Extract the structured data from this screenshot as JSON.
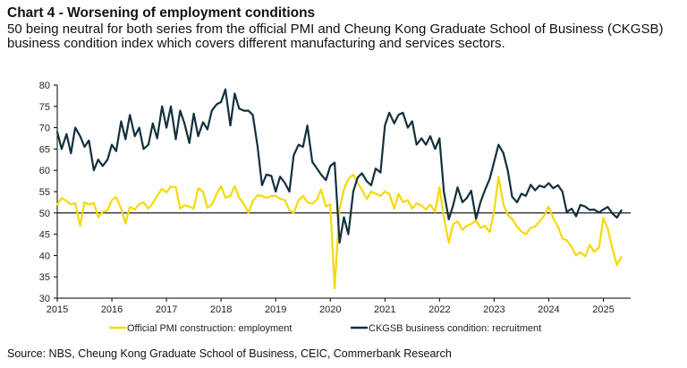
{
  "title": "Chart 4 - Worsening of employment conditions",
  "subtitle": "50 being neutral for both series from the official PMI and Cheung Kong Graduate School of Business (CKGSB) business condition index which covers different manufacturing and services sectors.",
  "source": "Source: NBS, Cheung Kong Graduate School of Business, CEIC, Commerbank Research",
  "colors": {
    "pmi": "#F5D90A",
    "ckgsb": "#13303D",
    "reference": "#000000"
  },
  "chart_data": {
    "type": "line",
    "xlim": [
      2015,
      2025.5
    ],
    "ylim": [
      30,
      80
    ],
    "x_ticks": [
      "2015",
      "2016",
      "2017",
      "2018",
      "2019",
      "2020",
      "2021",
      "2022",
      "2023",
      "2024",
      "2025"
    ],
    "y_ticks": [
      "30",
      "35",
      "40",
      "45",
      "50",
      "55",
      "60",
      "65",
      "70",
      "75",
      "80"
    ],
    "reference_line": 50,
    "grid": false,
    "legend_position": "bottom",
    "series": [
      {
        "name": "Official PMI construction: employment",
        "color": "#F5D90A",
        "points": [
          [
            2015.0,
            52.0
          ],
          [
            2015.08,
            53.5
          ],
          [
            2015.17,
            52.8
          ],
          [
            2015.25,
            52.0
          ],
          [
            2015.33,
            52.3
          ],
          [
            2015.42,
            47.0
          ],
          [
            2015.5,
            52.5
          ],
          [
            2015.58,
            52.0
          ],
          [
            2015.67,
            52.3
          ],
          [
            2015.75,
            49.0
          ],
          [
            2015.83,
            50.2
          ],
          [
            2015.92,
            50.6
          ],
          [
            2016.0,
            53.0
          ],
          [
            2016.08,
            53.7
          ],
          [
            2016.17,
            51.0
          ],
          [
            2016.25,
            47.5
          ],
          [
            2016.33,
            51.4
          ],
          [
            2016.42,
            50.8
          ],
          [
            2016.5,
            52.0
          ],
          [
            2016.58,
            52.5
          ],
          [
            2016.67,
            51.0
          ],
          [
            2016.75,
            52.3
          ],
          [
            2016.83,
            54.0
          ],
          [
            2016.92,
            55.7
          ],
          [
            2017.0,
            54.8
          ],
          [
            2017.08,
            56.2
          ],
          [
            2017.17,
            56.0
          ],
          [
            2017.25,
            51.0
          ],
          [
            2017.33,
            51.8
          ],
          [
            2017.42,
            51.5
          ],
          [
            2017.5,
            51.0
          ],
          [
            2017.58,
            55.8
          ],
          [
            2017.67,
            55.0
          ],
          [
            2017.75,
            51.2
          ],
          [
            2017.83,
            52.0
          ],
          [
            2017.92,
            54.5
          ],
          [
            2018.0,
            56.3
          ],
          [
            2018.08,
            53.6
          ],
          [
            2018.17,
            54.0
          ],
          [
            2018.25,
            56.3
          ],
          [
            2018.33,
            53.6
          ],
          [
            2018.42,
            52.0
          ],
          [
            2018.5,
            50.0
          ],
          [
            2018.58,
            52.8
          ],
          [
            2018.67,
            54.2
          ],
          [
            2018.75,
            54.0
          ],
          [
            2018.83,
            53.5
          ],
          [
            2018.92,
            54.0
          ],
          [
            2019.0,
            54.0
          ],
          [
            2019.08,
            53.3
          ],
          [
            2019.17,
            53.0
          ],
          [
            2019.25,
            50.6
          ],
          [
            2019.33,
            50.0
          ],
          [
            2019.42,
            53.0
          ],
          [
            2019.5,
            54.0
          ],
          [
            2019.58,
            52.5
          ],
          [
            2019.67,
            52.2
          ],
          [
            2019.75,
            53.0
          ],
          [
            2019.83,
            55.5
          ],
          [
            2019.92,
            51.5
          ],
          [
            2020.0,
            52.0
          ],
          [
            2020.08,
            32.3
          ],
          [
            2020.17,
            51.0
          ],
          [
            2020.25,
            55.5
          ],
          [
            2020.33,
            58.0
          ],
          [
            2020.42,
            59.0
          ],
          [
            2020.5,
            57.0
          ],
          [
            2020.58,
            55.4
          ],
          [
            2020.67,
            53.3
          ],
          [
            2020.75,
            55.0
          ],
          [
            2020.83,
            54.5
          ],
          [
            2020.92,
            54.0
          ],
          [
            2021.0,
            55.0
          ],
          [
            2021.08,
            54.5
          ],
          [
            2021.17,
            51.0
          ],
          [
            2021.25,
            54.5
          ],
          [
            2021.33,
            52.5
          ],
          [
            2021.42,
            53.0
          ],
          [
            2021.5,
            51.0
          ],
          [
            2021.58,
            52.2
          ],
          [
            2021.67,
            51.7
          ],
          [
            2021.75,
            50.8
          ],
          [
            2021.83,
            52.0
          ],
          [
            2021.92,
            50.2
          ],
          [
            2022.0,
            56.0
          ],
          [
            2022.08,
            49.0
          ],
          [
            2022.17,
            43.0
          ],
          [
            2022.25,
            47.4
          ],
          [
            2022.33,
            48.0
          ],
          [
            2022.42,
            46.0
          ],
          [
            2022.5,
            47.0
          ],
          [
            2022.58,
            47.4
          ],
          [
            2022.67,
            48.2
          ],
          [
            2022.75,
            46.5
          ],
          [
            2022.83,
            47.0
          ],
          [
            2022.92,
            45.5
          ],
          [
            2023.0,
            50.5
          ],
          [
            2023.08,
            58.5
          ],
          [
            2023.17,
            52.0
          ],
          [
            2023.25,
            49.5
          ],
          [
            2023.33,
            48.6
          ],
          [
            2023.42,
            46.8
          ],
          [
            2023.5,
            45.6
          ],
          [
            2023.58,
            45.0
          ],
          [
            2023.67,
            46.5
          ],
          [
            2023.75,
            46.8
          ],
          [
            2023.83,
            48.0
          ],
          [
            2023.92,
            49.4
          ],
          [
            2024.0,
            51.5
          ],
          [
            2024.08,
            48.8
          ],
          [
            2024.17,
            46.8
          ],
          [
            2024.25,
            44.0
          ],
          [
            2024.33,
            43.6
          ],
          [
            2024.42,
            42.0
          ],
          [
            2024.5,
            40.0
          ],
          [
            2024.58,
            40.8
          ],
          [
            2024.67,
            39.8
          ],
          [
            2024.75,
            42.5
          ],
          [
            2024.83,
            40.9
          ],
          [
            2024.92,
            41.8
          ],
          [
            2025.0,
            48.8
          ],
          [
            2025.08,
            46.3
          ],
          [
            2025.17,
            41.4
          ],
          [
            2025.25,
            37.8
          ],
          [
            2025.33,
            39.6
          ]
        ]
      },
      {
        "name": "CKGSB business condition: recruitment",
        "color": "#13303D",
        "points": [
          [
            2015.0,
            69.0
          ],
          [
            2015.08,
            65.0
          ],
          [
            2015.17,
            68.5
          ],
          [
            2015.25,
            64.0
          ],
          [
            2015.33,
            70.0
          ],
          [
            2015.42,
            68.0
          ],
          [
            2015.5,
            65.5
          ],
          [
            2015.58,
            67.0
          ],
          [
            2015.67,
            60.0
          ],
          [
            2015.75,
            62.5
          ],
          [
            2015.83,
            61.0
          ],
          [
            2015.92,
            62.5
          ],
          [
            2016.0,
            66.0
          ],
          [
            2016.08,
            64.5
          ],
          [
            2016.17,
            71.5
          ],
          [
            2016.25,
            67.3
          ],
          [
            2016.33,
            73.0
          ],
          [
            2016.42,
            68.0
          ],
          [
            2016.5,
            70.0
          ],
          [
            2016.58,
            65.0
          ],
          [
            2016.67,
            66.0
          ],
          [
            2016.75,
            71.0
          ],
          [
            2016.83,
            67.5
          ],
          [
            2016.92,
            75.0
          ],
          [
            2017.0,
            70.0
          ],
          [
            2017.08,
            75.0
          ],
          [
            2017.17,
            67.3
          ],
          [
            2017.25,
            74.0
          ],
          [
            2017.33,
            71.0
          ],
          [
            2017.42,
            66.4
          ],
          [
            2017.5,
            73.3
          ],
          [
            2017.58,
            68.0
          ],
          [
            2017.67,
            71.3
          ],
          [
            2017.75,
            69.6
          ],
          [
            2017.83,
            74.0
          ],
          [
            2017.92,
            75.5
          ],
          [
            2018.0,
            76.0
          ],
          [
            2018.08,
            79.0
          ],
          [
            2018.17,
            70.5
          ],
          [
            2018.25,
            78.0
          ],
          [
            2018.33,
            74.5
          ],
          [
            2018.42,
            74.0
          ],
          [
            2018.5,
            74.0
          ],
          [
            2018.58,
            73.0
          ],
          [
            2018.67,
            65.5
          ],
          [
            2018.75,
            56.5
          ],
          [
            2018.83,
            59.0
          ],
          [
            2018.92,
            58.7
          ],
          [
            2019.0,
            55.0
          ],
          [
            2019.08,
            58.5
          ],
          [
            2019.17,
            57.0
          ],
          [
            2019.25,
            55.0
          ],
          [
            2019.33,
            63.5
          ],
          [
            2019.42,
            66.0
          ],
          [
            2019.5,
            65.5
          ],
          [
            2019.58,
            70.5
          ],
          [
            2019.67,
            62.0
          ],
          [
            2019.75,
            60.5
          ],
          [
            2019.83,
            59.0
          ],
          [
            2019.92,
            57.7
          ],
          [
            2020.0,
            61.0
          ],
          [
            2020.08,
            61.8
          ],
          [
            2020.17,
            43.0
          ],
          [
            2020.25,
            49.0
          ],
          [
            2020.33,
            45.0
          ],
          [
            2020.42,
            55.0
          ],
          [
            2020.5,
            58.3
          ],
          [
            2020.58,
            59.3
          ],
          [
            2020.67,
            57.4
          ],
          [
            2020.75,
            56.5
          ],
          [
            2020.83,
            60.4
          ],
          [
            2020.92,
            59.5
          ],
          [
            2021.0,
            70.5
          ],
          [
            2021.08,
            73.5
          ],
          [
            2021.17,
            71.0
          ],
          [
            2021.25,
            73.0
          ],
          [
            2021.33,
            73.5
          ],
          [
            2021.42,
            70.0
          ],
          [
            2021.5,
            71.5
          ],
          [
            2021.58,
            66.0
          ],
          [
            2021.67,
            67.5
          ],
          [
            2021.75,
            66.0
          ],
          [
            2021.83,
            68.0
          ],
          [
            2021.92,
            65.0
          ],
          [
            2022.0,
            67.5
          ],
          [
            2022.08,
            55.0
          ],
          [
            2022.17,
            48.5
          ],
          [
            2022.25,
            51.8
          ],
          [
            2022.33,
            56.0
          ],
          [
            2022.42,
            52.5
          ],
          [
            2022.5,
            53.5
          ],
          [
            2022.58,
            55.2
          ],
          [
            2022.67,
            48.6
          ],
          [
            2022.75,
            52.5
          ],
          [
            2022.83,
            55.3
          ],
          [
            2022.92,
            58.0
          ],
          [
            2023.0,
            62.0
          ],
          [
            2023.08,
            66.0
          ],
          [
            2023.17,
            64.0
          ],
          [
            2023.25,
            60.0
          ],
          [
            2023.33,
            53.8
          ],
          [
            2023.42,
            52.5
          ],
          [
            2023.5,
            54.5
          ],
          [
            2023.58,
            54.0
          ],
          [
            2023.67,
            56.6
          ],
          [
            2023.75,
            55.3
          ],
          [
            2023.83,
            56.4
          ],
          [
            2023.92,
            56.0
          ],
          [
            2024.0,
            57.0
          ],
          [
            2024.08,
            55.8
          ],
          [
            2024.17,
            56.5
          ],
          [
            2024.25,
            55.0
          ],
          [
            2024.33,
            50.2
          ],
          [
            2024.42,
            51.0
          ],
          [
            2024.5,
            49.2
          ],
          [
            2024.58,
            51.9
          ],
          [
            2024.67,
            51.5
          ],
          [
            2024.75,
            50.7
          ],
          [
            2024.83,
            50.8
          ],
          [
            2024.92,
            50.1
          ],
          [
            2025.0,
            50.8
          ],
          [
            2025.08,
            51.4
          ],
          [
            2025.17,
            49.8
          ],
          [
            2025.25,
            48.9
          ],
          [
            2025.33,
            50.6
          ]
        ]
      }
    ]
  }
}
